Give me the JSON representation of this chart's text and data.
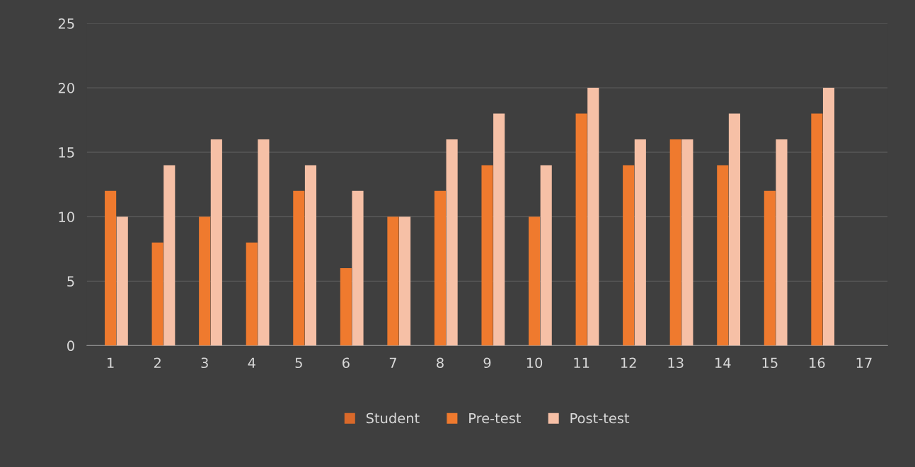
{
  "chart_data": {
    "type": "bar",
    "categories": [
      "1",
      "2",
      "3",
      "4",
      "5",
      "6",
      "7",
      "8",
      "9",
      "10",
      "11",
      "12",
      "13",
      "14",
      "15",
      "16",
      "17"
    ],
    "series": [
      {
        "name": "Student",
        "color": "#d9692a",
        "values": [
          null,
          null,
          null,
          null,
          null,
          null,
          null,
          null,
          null,
          null,
          null,
          null,
          null,
          null,
          null,
          null,
          null
        ]
      },
      {
        "name": "Pre-test",
        "color": "#ef7a2e",
        "values": [
          12,
          8,
          10,
          8,
          12,
          6,
          10,
          12,
          14,
          10,
          18,
          14,
          16,
          14,
          12,
          18,
          null
        ]
      },
      {
        "name": "Post-test",
        "color": "#f6c0a6",
        "values": [
          10,
          14,
          16,
          16,
          14,
          12,
          10,
          16,
          18,
          14,
          20,
          16,
          16,
          18,
          16,
          20,
          null
        ]
      }
    ],
    "ylim": [
      0,
      25
    ],
    "yticks": [
      0,
      5,
      10,
      15,
      20,
      25
    ],
    "grid": "y",
    "legend": "bottom"
  }
}
